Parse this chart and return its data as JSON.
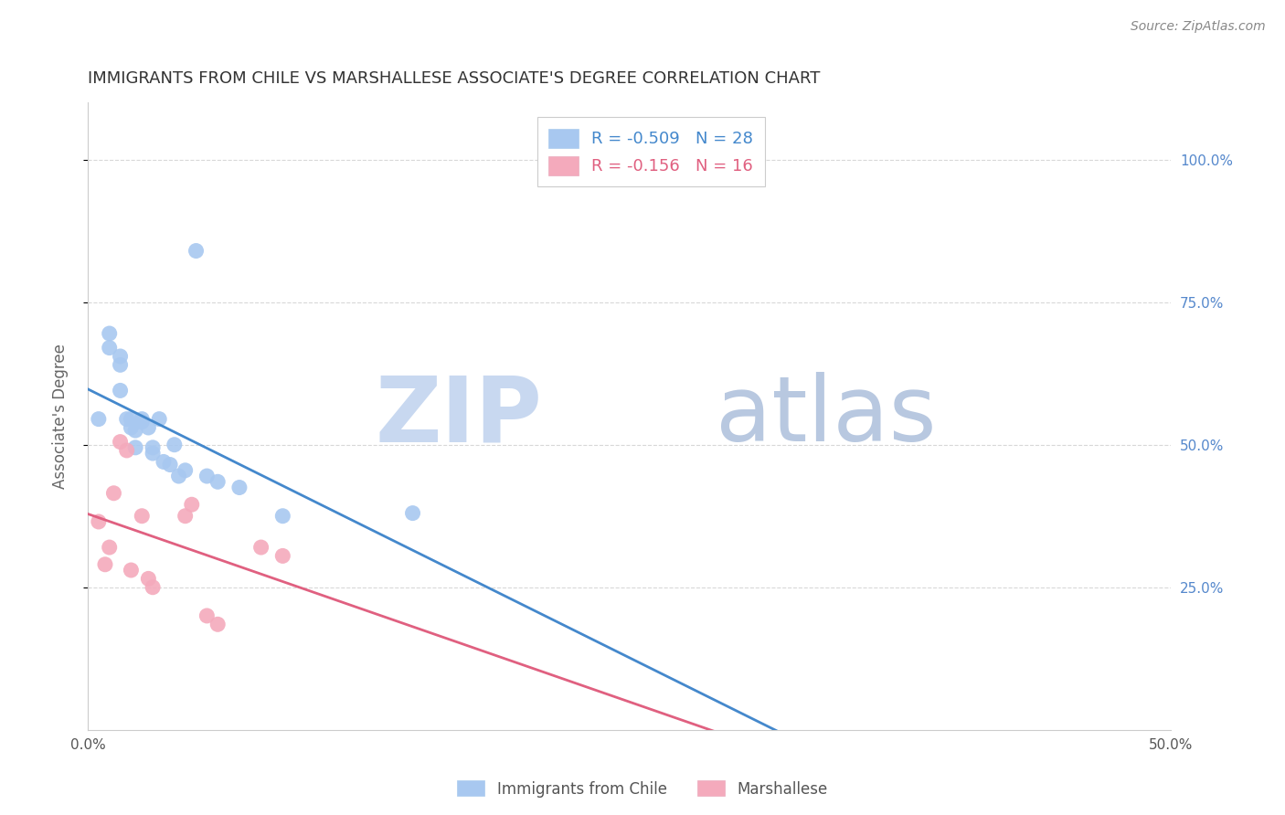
{
  "title": "IMMIGRANTS FROM CHILE VS MARSHALLESE ASSOCIATE'S DEGREE CORRELATION CHART",
  "source_text": "Source: ZipAtlas.com",
  "ylabel": "Associate's Degree",
  "xlim": [
    0.0,
    0.5
  ],
  "ylim": [
    0.0,
    1.1
  ],
  "xtick_labels": [
    "0.0%",
    "",
    "",
    "",
    "",
    "50.0%"
  ],
  "xtick_values": [
    0.0,
    0.1,
    0.2,
    0.3,
    0.4,
    0.5
  ],
  "ytick_values": [
    0.25,
    0.5,
    0.75,
    1.0
  ],
  "right_ytick_labels": [
    "25.0%",
    "50.0%",
    "75.0%",
    "100.0%"
  ],
  "blue_label": "Immigrants from Chile",
  "pink_label": "Marshallese",
  "blue_R": -0.509,
  "blue_N": 28,
  "pink_R": -0.156,
  "pink_N": 16,
  "blue_dot_color": "#A8C8F0",
  "pink_dot_color": "#F4AABC",
  "blue_line_color": "#4488CC",
  "pink_line_color": "#E06080",
  "watermark_zip_color": "#C8D8F0",
  "watermark_atlas_color": "#B8C8E0",
  "background_color": "#FFFFFF",
  "grid_color": "#D8D8D8",
  "title_color": "#333333",
  "axis_label_color": "#666666",
  "right_axis_color": "#5588CC",
  "blue_x": [
    0.005,
    0.01,
    0.01,
    0.015,
    0.015,
    0.015,
    0.018,
    0.02,
    0.02,
    0.022,
    0.022,
    0.025,
    0.025,
    0.028,
    0.03,
    0.03,
    0.033,
    0.035,
    0.038,
    0.04,
    0.042,
    0.045,
    0.05,
    0.055,
    0.06,
    0.07,
    0.09,
    0.15
  ],
  "blue_y": [
    0.545,
    0.67,
    0.695,
    0.595,
    0.64,
    0.655,
    0.545,
    0.53,
    0.545,
    0.495,
    0.525,
    0.54,
    0.545,
    0.53,
    0.485,
    0.495,
    0.545,
    0.47,
    0.465,
    0.5,
    0.445,
    0.455,
    0.84,
    0.445,
    0.435,
    0.425,
    0.375,
    0.38
  ],
  "pink_x": [
    0.005,
    0.008,
    0.01,
    0.012,
    0.015,
    0.018,
    0.02,
    0.025,
    0.028,
    0.03,
    0.045,
    0.048,
    0.055,
    0.06,
    0.08,
    0.09
  ],
  "pink_y": [
    0.365,
    0.29,
    0.32,
    0.415,
    0.505,
    0.49,
    0.28,
    0.375,
    0.265,
    0.25,
    0.375,
    0.395,
    0.2,
    0.185,
    0.32,
    0.305
  ],
  "figsize": [
    14.06,
    8.92
  ],
  "dpi": 100
}
